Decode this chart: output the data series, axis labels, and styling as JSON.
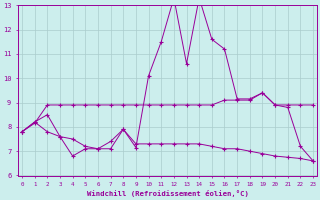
{
  "xlabel": "Windchill (Refroidissement éolien,°C)",
  "bg_color": "#cceeed",
  "line_color": "#990099",
  "grid_color": "#aacccc",
  "ylim": [
    6,
    13
  ],
  "yticks": [
    6,
    7,
    8,
    9,
    10,
    11,
    12,
    13
  ],
  "xticks": [
    0,
    1,
    2,
    3,
    4,
    5,
    6,
    7,
    8,
    9,
    10,
    11,
    12,
    13,
    14,
    15,
    16,
    17,
    18,
    19,
    20,
    21,
    22,
    23
  ],
  "line1": [
    7.8,
    8.2,
    7.8,
    7.6,
    6.8,
    7.1,
    7.1,
    7.1,
    7.9,
    7.15,
    10.1,
    11.5,
    13.3,
    10.6,
    13.3,
    11.6,
    11.2,
    9.15,
    9.15,
    9.4,
    8.9,
    8.8,
    7.2,
    6.6
  ],
  "line2": [
    7.8,
    8.15,
    8.9,
    8.9,
    8.9,
    8.9,
    8.9,
    8.9,
    8.9,
    8.9,
    8.9,
    8.9,
    8.9,
    8.9,
    8.9,
    8.9,
    9.1,
    9.1,
    9.1,
    9.4,
    8.9,
    8.9,
    8.9,
    8.9
  ],
  "line3": [
    7.8,
    8.2,
    8.5,
    7.6,
    7.5,
    7.2,
    7.1,
    7.4,
    7.9,
    7.3,
    7.3,
    7.3,
    7.3,
    7.3,
    7.3,
    7.2,
    7.1,
    7.1,
    7.0,
    6.9,
    6.8,
    6.75,
    6.7,
    6.6
  ]
}
